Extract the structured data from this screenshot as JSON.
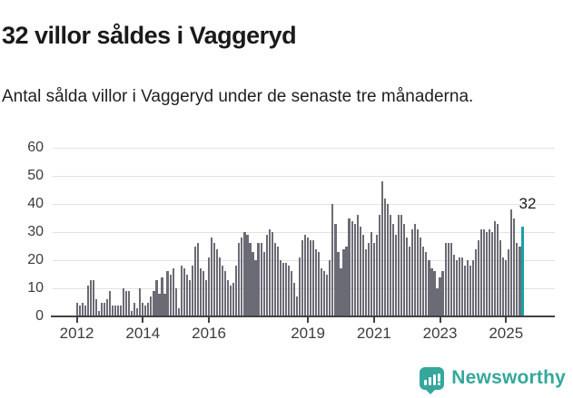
{
  "header": {
    "title": "32 villor såldes i Vaggeryd",
    "subtitle": "Antal sålda villor i Vaggeryd under de senaste tre månaderna."
  },
  "chart_data": {
    "type": "bar",
    "x_start": "2012-01",
    "x_end": "2025-07",
    "frequency": "monthly",
    "values": [
      5,
      4,
      5,
      4,
      11,
      13,
      13,
      6,
      2,
      5,
      5,
      6,
      9,
      4,
      4,
      4,
      4,
      10,
      9,
      9,
      2,
      5,
      3,
      10,
      5,
      4,
      5,
      7,
      9,
      13,
      8,
      14,
      8,
      16,
      15,
      17,
      10,
      3,
      18,
      17,
      15,
      13,
      18,
      25,
      26,
      17,
      16,
      13,
      21,
      28,
      26,
      24,
      21,
      18,
      16,
      13,
      11,
      12,
      18,
      26,
      28,
      30,
      29,
      26,
      23,
      20,
      26,
      26,
      23,
      29,
      31,
      30,
      26,
      25,
      20,
      19,
      19,
      18,
      16,
      12,
      7,
      21,
      27,
      29,
      28,
      27,
      27,
      24,
      23,
      17,
      16,
      15,
      20,
      40,
      33,
      23,
      17,
      24,
      25,
      35,
      34,
      33,
      36,
      32,
      29,
      24,
      26,
      30,
      26,
      29,
      36,
      48,
      42,
      40,
      36,
      33,
      29,
      36,
      36,
      33,
      28,
      25,
      31,
      33,
      31,
      28,
      25,
      23,
      20,
      17,
      16,
      10,
      14,
      16,
      26,
      26,
      26,
      22,
      20,
      21,
      21,
      18,
      20,
      18,
      20,
      24,
      27,
      31,
      31,
      30,
      31,
      30,
      34,
      33,
      27,
      21,
      20,
      24,
      38,
      35,
      26,
      25,
      32
    ],
    "highlight": {
      "index": 162,
      "value": 32,
      "label": "32"
    },
    "ylim": [
      0,
      60
    ],
    "y_ticks": [
      0,
      10,
      20,
      30,
      40,
      50,
      60
    ],
    "x_ticks": [
      {
        "label": "2012",
        "month": 0
      },
      {
        "label": "2014",
        "month": 24
      },
      {
        "label": "2016",
        "month": 48
      },
      {
        "label": "2019",
        "month": 84
      },
      {
        "label": "2021",
        "month": 108
      },
      {
        "label": "2023",
        "month": 132
      },
      {
        "label": "2025",
        "month": 156
      }
    ],
    "bar_color": "#6b6b75",
    "highlight_color": "#18a1a6",
    "grid": true,
    "legend": "none"
  },
  "footer": {
    "brand": "Newsworthy",
    "brand_color": "#35a79c",
    "icon": "newsworthy-bar-chart-bubble-icon"
  }
}
